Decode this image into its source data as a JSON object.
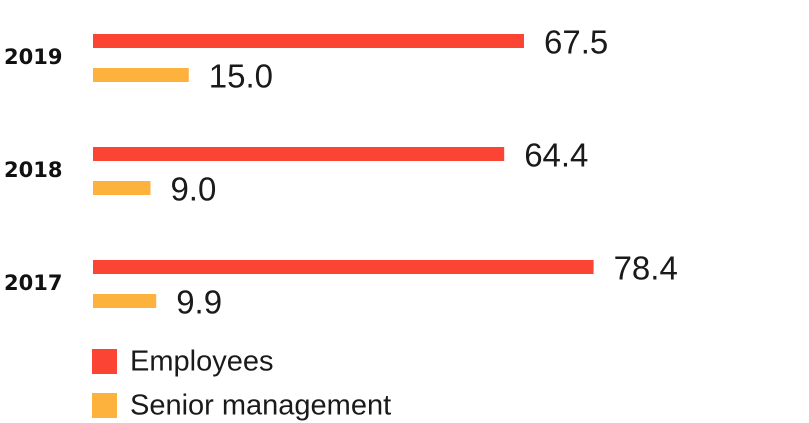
{
  "chart_data": {
    "type": "bar",
    "orientation": "horizontal",
    "categories": [
      "2019",
      "2018",
      "2017"
    ],
    "series": [
      {
        "name": "Employees",
        "color": "#fc4434",
        "values": [
          67.5,
          64.4,
          78.4
        ],
        "labels": [
          "67.5",
          "64.4",
          "78.4"
        ]
      },
      {
        "name": "Senior management",
        "color": "#fdb23e",
        "values": [
          15.0,
          9.0,
          9.9
        ],
        "labels": [
          "15.0",
          "9.0",
          "9.9"
        ]
      }
    ],
    "xlim": [
      0,
      100
    ],
    "grid": false,
    "legend": "bottom-left"
  }
}
